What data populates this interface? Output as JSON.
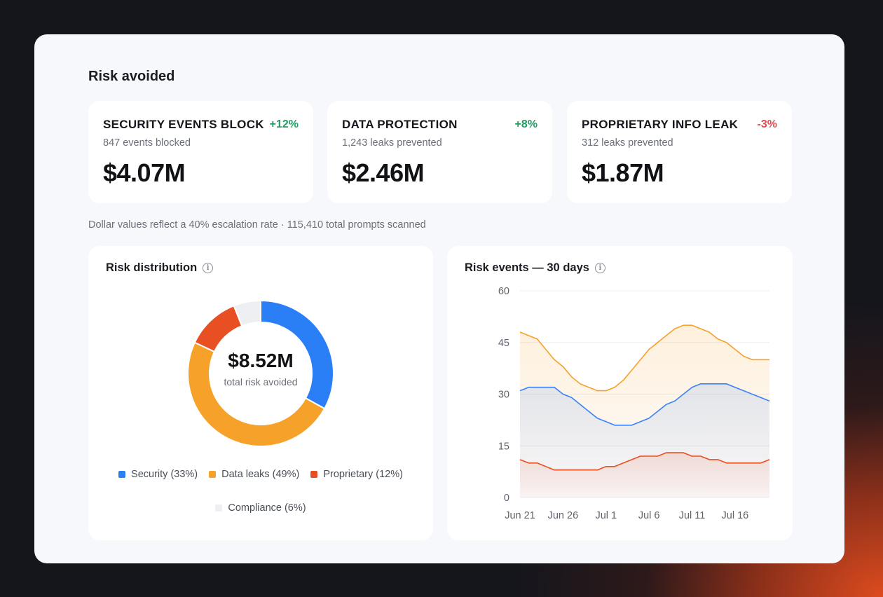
{
  "section_title": "Risk avoided",
  "stats": [
    {
      "title": "SECURITY EVENTS BLOCKED",
      "change": "+12%",
      "trend": "up",
      "subtitle": "847 events blocked",
      "value": "$4.07M"
    },
    {
      "title": "DATA PROTECTION",
      "change": "+8%",
      "trend": "up",
      "subtitle": "1,243 leaks prevented",
      "value": "$2.46M"
    },
    {
      "title": "PROPRIETARY INFO LEAK",
      "change": "-3%",
      "trend": "down",
      "subtitle": "312 leaks prevented",
      "value": "$1.87M"
    }
  ],
  "note": "Dollar values reflect a 40% escalation rate · 115,410 total prompts scanned",
  "distribution": {
    "title": "Risk distribution",
    "total": "$8.52M",
    "caption": "total risk avoided",
    "legend": [
      {
        "label": "Security (33%)",
        "color": "#2b7ff6"
      },
      {
        "label": "Data leaks (49%)",
        "color": "#f6a12a"
      },
      {
        "label": "Proprietary (12%)",
        "color": "#e84f22"
      },
      {
        "label": "Compliance (6%)",
        "color": "#eeeff2"
      }
    ]
  },
  "colors": {
    "security": "#2b7ff6",
    "data_leaks": "#f6a12a",
    "proprietary": "#e84f22",
    "compliance": "#eeeff2",
    "positive": "#1f9d63",
    "negative": "#e5484d"
  },
  "chart_data": [
    {
      "type": "pie",
      "variant": "donut",
      "categories": [
        "Security",
        "Data leaks",
        "Proprietary",
        "Compliance"
      ],
      "values": [
        33,
        49,
        12,
        6
      ],
      "colors": [
        "#2b7ff6",
        "#f6a12a",
        "#e84f22",
        "#eeeff2"
      ],
      "title": "Risk distribution"
    },
    {
      "type": "area",
      "title": "Risk events — 30 days",
      "x": [
        "Jun 21",
        "Jun 22",
        "Jun 23",
        "Jun 24",
        "Jun 25",
        "Jun 26",
        "Jun 27",
        "Jun 28",
        "Jun 29",
        "Jun 30",
        "Jul 1",
        "Jul 2",
        "Jul 3",
        "Jul 4",
        "Jul 5",
        "Jul 6",
        "Jul 7",
        "Jul 8",
        "Jul 9",
        "Jul 10",
        "Jul 11",
        "Jul 12",
        "Jul 13",
        "Jul 14",
        "Jul 15",
        "Jul 16",
        "Jul 17",
        "Jul 18",
        "Jul 19",
        "Jul 20"
      ],
      "xticks": [
        "Jun 21",
        "Jun 26",
        "Jul 1",
        "Jul 6",
        "Jul 11",
        "Jul 16"
      ],
      "yticks": [
        0,
        15,
        30,
        45,
        60
      ],
      "ylim": [
        0,
        60
      ],
      "grid": true,
      "series": [
        {
          "color": "#f6a12a",
          "values": [
            48,
            47,
            46,
            43,
            40,
            38,
            35,
            33,
            32,
            31,
            31,
            32,
            34,
            37,
            40,
            43,
            45,
            47,
            49,
            50,
            50,
            49,
            48,
            46,
            45,
            43,
            41,
            40,
            40,
            40
          ]
        },
        {
          "color": "#3b82f6",
          "values": [
            31,
            32,
            32,
            32,
            32,
            30,
            29,
            27,
            25,
            23,
            22,
            21,
            21,
            21,
            22,
            23,
            25,
            27,
            28,
            30,
            32,
            33,
            33,
            33,
            33,
            32,
            31,
            30,
            29,
            28
          ]
        },
        {
          "color": "#e84f22",
          "values": [
            11,
            10,
            10,
            9,
            8,
            8,
            8,
            8,
            8,
            8,
            9,
            9,
            10,
            11,
            12,
            12,
            12,
            13,
            13,
            13,
            12,
            12,
            11,
            11,
            10,
            10,
            10,
            10,
            10,
            11
          ]
        }
      ]
    }
  ]
}
